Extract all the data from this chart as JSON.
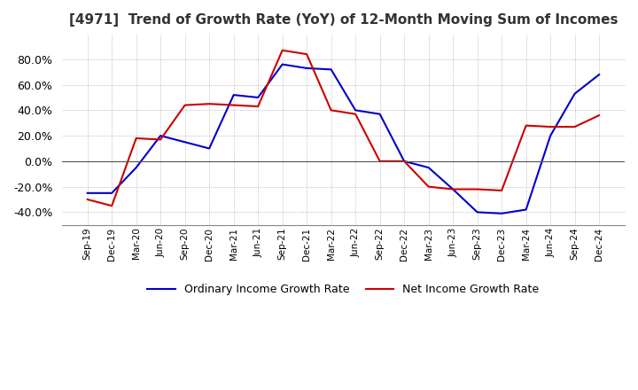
{
  "title": "[4971]  Trend of Growth Rate (YoY) of 12-Month Moving Sum of Incomes",
  "title_fontsize": 11,
  "ylim": [
    -50,
    100
  ],
  "yticks": [
    -40,
    -20,
    0,
    20,
    40,
    60,
    80
  ],
  "legend_labels": [
    "Ordinary Income Growth Rate",
    "Net Income Growth Rate"
  ],
  "line_colors": [
    "#0000cc",
    "#cc0000"
  ],
  "background_color": "#ffffff",
  "x_labels": [
    "Sep-19",
    "Dec-19",
    "Mar-20",
    "Jun-20",
    "Sep-20",
    "Dec-20",
    "Mar-21",
    "Jun-21",
    "Sep-21",
    "Dec-21",
    "Mar-22",
    "Jun-22",
    "Sep-22",
    "Dec-22",
    "Mar-23",
    "Jun-23",
    "Sep-23",
    "Dec-23",
    "Mar-24",
    "Jun-24",
    "Sep-24",
    "Dec-24"
  ],
  "ordinary_income": [
    -25,
    -25,
    -5,
    20,
    15,
    10,
    52,
    50,
    76,
    73,
    72,
    40,
    37,
    0,
    -5,
    -22,
    -40,
    -41,
    -38,
    20,
    53,
    68
  ],
  "net_income": [
    -30,
    -35,
    18,
    17,
    44,
    45,
    44,
    43,
    87,
    84,
    40,
    37,
    0,
    0,
    -20,
    -22,
    -22,
    -23,
    28,
    27,
    27,
    36
  ]
}
